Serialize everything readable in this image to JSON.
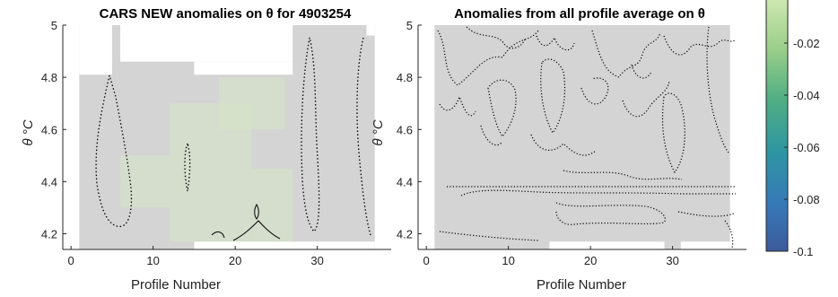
{
  "chart_data": [
    {
      "type": "heatmap",
      "title": "CARS NEW anomalies on θ for 4903254",
      "xlabel": "Profile Number",
      "ylabel": "θ °C",
      "xlim": [
        -1,
        39
      ],
      "ylim": [
        4.14,
        5.0
      ],
      "xticks": [
        0,
        10,
        20,
        30
      ],
      "yticks": [
        4.2,
        4.4,
        4.6,
        4.8,
        5
      ],
      "xtick_labels": [
        "0",
        "10",
        "20",
        "30"
      ],
      "ytick_labels": [
        "4.2",
        "4.4",
        "4.6",
        "4.8",
        "5"
      ],
      "data_region": {
        "x": [
          1,
          37
        ],
        "y": [
          4.14,
          5.0
        ]
      },
      "missing_regions": [
        {
          "x": [
            1,
            5
          ],
          "y": [
            4.81,
            5.0
          ]
        },
        {
          "x": [
            6,
            27
          ],
          "y": [
            4.86,
            5.0
          ]
        },
        {
          "x": [
            15,
            27
          ],
          "y": [
            4.81,
            4.86
          ]
        },
        {
          "x": [
            15,
            37
          ],
          "y": [
            4.14,
            4.17
          ]
        },
        {
          "x": [
            36,
            37
          ],
          "y": [
            4.96,
            5.0
          ]
        }
      ],
      "value_summary": "anomalies mostly between -0.01 and 0, weak green patches near the bottom (≈ -0.02)",
      "colors": {
        "background": "#d4d4d4",
        "light_anomaly": "#d6e3c6"
      }
    },
    {
      "type": "heatmap",
      "title": "Anomalies from all profile average on θ",
      "xlabel": "Profile Number",
      "ylabel": "θ °C",
      "xlim": [
        -1,
        39
      ],
      "ylim": [
        4.14,
        5.0
      ],
      "xticks": [
        0,
        10,
        20,
        30
      ],
      "yticks": [
        4.2,
        4.4,
        4.6,
        4.8,
        5
      ],
      "xtick_labels": [
        "0",
        "10",
        "20",
        "30"
      ],
      "ytick_labels": [
        "4.2",
        "4.4",
        "4.6",
        "4.8",
        "5"
      ],
      "data_region": {
        "x": [
          1,
          37
        ],
        "y": [
          4.14,
          5.0
        ]
      },
      "missing_regions": [
        {
          "x": [
            15,
            29
          ],
          "y": [
            4.14,
            4.17
          ]
        },
        {
          "x": [
            31,
            37
          ],
          "y": [
            4.14,
            4.17
          ]
        }
      ],
      "value_summary": "near-zero anomalies, many dotted contour lines",
      "colors": {
        "background": "#d4d4d4"
      }
    },
    {
      "type": "colorbar",
      "range": [
        -0.1,
        0
      ],
      "ticks": [
        -0.02,
        -0.04,
        -0.06,
        -0.08,
        -0.1
      ],
      "tick_labels": [
        "-0.02",
        "-0.04",
        "-0.06",
        "-0.08",
        "-0.1"
      ],
      "colormap": "parula-like (dark blue at -0.1 to light yellow-green near 0)"
    }
  ]
}
